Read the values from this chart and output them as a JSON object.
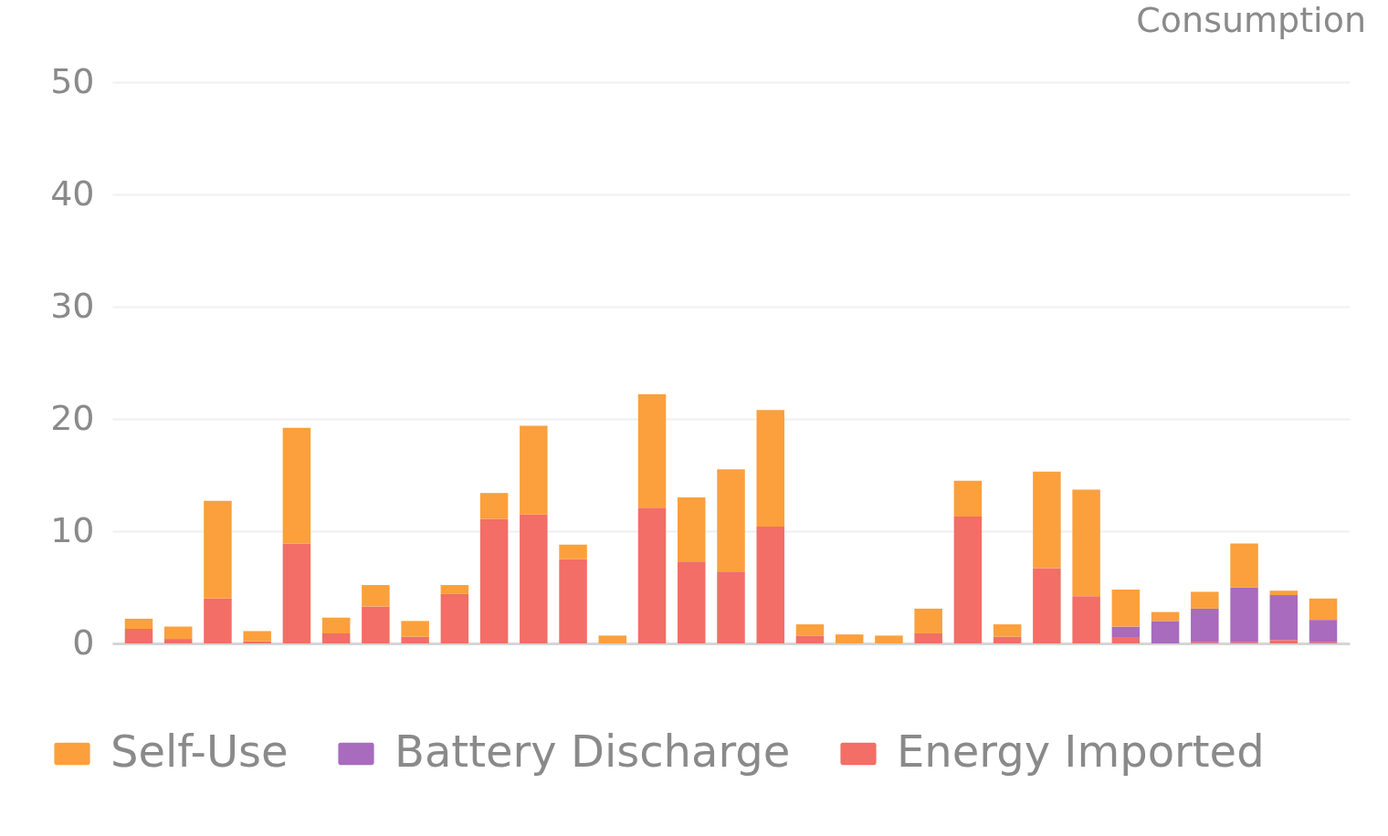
{
  "chart_data": {
    "type": "bar",
    "title": "Consumption",
    "stacked": true,
    "categories": [
      null,
      null,
      null,
      null,
      null,
      null,
      null,
      null,
      null,
      null,
      null,
      null,
      null,
      null,
      null,
      null,
      null,
      null,
      null,
      null,
      null,
      null,
      null,
      null,
      null,
      null,
      null,
      null,
      null,
      null,
      null
    ],
    "series": [
      {
        "name": "Energy Imported",
        "color": "#f26e66",
        "values": [
          1.3,
          0.4,
          4.0,
          0.2,
          8.9,
          0.9,
          3.3,
          0.6,
          4.4,
          11.1,
          11.5,
          7.5,
          0,
          12.1,
          7.3,
          6.4,
          10.4,
          0.7,
          0,
          0,
          0.9,
          11.3,
          0.6,
          6.7,
          4.2,
          0.5,
          0,
          0.1,
          0.1,
          0.3,
          0.1
        ]
      },
      {
        "name": "Battery Discharge",
        "color": "#a86bbd",
        "values": [
          0,
          0,
          0,
          0,
          0,
          0,
          0,
          0,
          0,
          0,
          0,
          0,
          0,
          0,
          0,
          0,
          0,
          0,
          0,
          0,
          0,
          0,
          0,
          0,
          0,
          1.0,
          2.0,
          3.0,
          4.9,
          4.0,
          2.0
        ]
      },
      {
        "name": "Self-Use",
        "color": "#fba03c",
        "values": [
          0.9,
          1.1,
          8.7,
          0.9,
          10.3,
          1.4,
          1.9,
          1.4,
          0.8,
          2.3,
          7.9,
          1.3,
          0.7,
          10.1,
          5.7,
          9.1,
          10.4,
          1.0,
          0.8,
          0.7,
          2.2,
          3.2,
          1.1,
          8.6,
          9.5,
          3.3,
          0.8,
          1.5,
          3.9,
          0.4,
          1.9
        ]
      }
    ],
    "ylim": [
      0,
      50
    ],
    "yticks": [
      0,
      10,
      20,
      30,
      40,
      50
    ],
    "grid": "y",
    "legend": "bottom",
    "tick_labels": "y"
  }
}
